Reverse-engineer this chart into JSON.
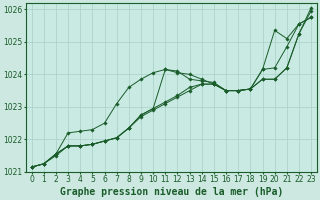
{
  "xlabel": "Graphe pression niveau de la mer (hPa)",
  "ylabel": "",
  "background_color": "#cce8e0",
  "plot_bg_color": "#c8eae2",
  "grid_color": "#a8d0c8",
  "line_color": "#1a5c2a",
  "xlim": [
    -0.5,
    23.5
  ],
  "ylim": [
    1021.0,
    1026.2
  ],
  "yticks": [
    1021,
    1022,
    1023,
    1024,
    1025,
    1026
  ],
  "xticks": [
    0,
    1,
    2,
    3,
    4,
    5,
    6,
    7,
    8,
    9,
    10,
    11,
    12,
    13,
    14,
    15,
    16,
    17,
    18,
    19,
    20,
    21,
    22,
    23
  ],
  "series": [
    [
      1021.15,
      1021.25,
      1021.55,
      1021.8,
      1021.8,
      1021.85,
      1021.95,
      1022.05,
      1022.35,
      1022.75,
      1022.95,
      1024.15,
      1024.1,
      1023.85,
      1023.8,
      1023.75,
      1023.5,
      1023.5,
      1023.55,
      1024.15,
      1025.35,
      1025.1,
      1025.55,
      1025.75
    ],
    [
      1021.15,
      1021.25,
      1021.55,
      1022.2,
      1022.25,
      1022.3,
      1022.5,
      1023.1,
      1023.6,
      1023.85,
      1024.05,
      1024.15,
      1024.05,
      1024.0,
      1023.85,
      1023.7,
      1023.5,
      1023.5,
      1023.55,
      1023.85,
      1023.85,
      1024.2,
      1025.25,
      1026.05
    ],
    [
      1021.15,
      1021.25,
      1021.55,
      1021.8,
      1021.8,
      1021.85,
      1021.95,
      1022.05,
      1022.35,
      1022.75,
      1022.95,
      1023.15,
      1023.35,
      1023.6,
      1023.7,
      1023.7,
      1023.5,
      1023.5,
      1023.55,
      1024.15,
      1024.2,
      1024.85,
      1025.55,
      1025.75
    ],
    [
      1021.15,
      1021.25,
      1021.5,
      1021.8,
      1021.8,
      1021.85,
      1021.95,
      1022.05,
      1022.35,
      1022.7,
      1022.9,
      1023.1,
      1023.3,
      1023.5,
      1023.7,
      1023.7,
      1023.5,
      1023.5,
      1023.55,
      1023.85,
      1023.85,
      1024.2,
      1025.25,
      1025.95
    ]
  ],
  "marker": "D",
  "markersize": 1.8,
  "linewidth": 0.7,
  "xlabel_fontsize": 7,
  "tick_fontsize": 5.5
}
